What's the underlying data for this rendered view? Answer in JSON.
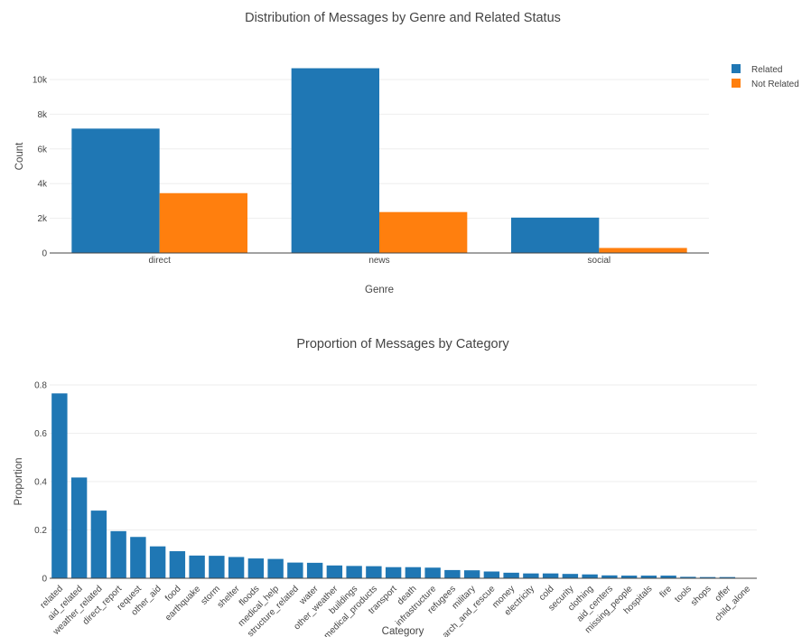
{
  "chart_data": [
    {
      "type": "bar",
      "title": "Distribution of Messages by Genre and Related Status",
      "xlabel": "Genre",
      "ylabel": "Count",
      "categories": [
        "direct",
        "news",
        "social"
      ],
      "series": [
        {
          "name": "Related",
          "color": "#1f77b4",
          "values": [
            7170,
            10650,
            2040
          ]
        },
        {
          "name": "Not Related",
          "color": "#ff7f0e",
          "values": [
            3450,
            2360,
            290
          ]
        }
      ],
      "ylim": [
        0,
        11000
      ],
      "yticks": [
        0,
        2000,
        4000,
        6000,
        8000,
        10000
      ],
      "ytick_labels": [
        "0",
        "2k",
        "4k",
        "6k",
        "8k",
        "10k"
      ],
      "legend": "top-right",
      "grid": true
    },
    {
      "type": "bar",
      "title": "Proportion of Messages by Category",
      "xlabel": "Category",
      "ylabel": "Proportion",
      "color": "#1f77b4",
      "categories": [
        "related",
        "aid_related",
        "weather_related",
        "direct_report",
        "request",
        "other_aid",
        "food",
        "earthquake",
        "storm",
        "shelter",
        "floods",
        "medical_help",
        "infrastructure_related",
        "water",
        "other_weather",
        "buildings",
        "medical_products",
        "transport",
        "death",
        "other_infrastructure",
        "refugees",
        "military",
        "search_and_rescue",
        "money",
        "electricity",
        "cold",
        "security",
        "clothing",
        "aid_centers",
        "missing_people",
        "hospitals",
        "fire",
        "tools",
        "shops",
        "offer",
        "child_alone"
      ],
      "tick_labels": [
        "related",
        "aid_related",
        "weather_related",
        "direct_report",
        "request",
        "other_aid",
        "food",
        "earthquake",
        "storm",
        "shelter",
        "floods",
        "medical_help",
        "structure_related",
        "water",
        "other_weather",
        "buildings",
        "medical_products",
        "transport",
        "death",
        "infrastructure",
        "refugees",
        "military",
        "arch_and_rescue",
        "money",
        "electricity",
        "cold",
        "security",
        "clothing",
        "aid_centers",
        "missing_people",
        "hospitals",
        "fire",
        "tools",
        "shops",
        "offer",
        "child_alone"
      ],
      "values": [
        0.765,
        0.417,
        0.28,
        0.195,
        0.171,
        0.132,
        0.112,
        0.094,
        0.093,
        0.088,
        0.082,
        0.08,
        0.065,
        0.064,
        0.053,
        0.051,
        0.05,
        0.046,
        0.046,
        0.044,
        0.034,
        0.033,
        0.028,
        0.023,
        0.02,
        0.02,
        0.018,
        0.016,
        0.012,
        0.011,
        0.011,
        0.011,
        0.006,
        0.005,
        0.005,
        0.0
      ],
      "ylim": [
        0,
        0.8
      ],
      "yticks": [
        0,
        0.2,
        0.4,
        0.6,
        0.8
      ],
      "ytick_labels": [
        "0",
        "0.2",
        "0.4",
        "0.6",
        "0.8"
      ],
      "grid": true
    }
  ]
}
